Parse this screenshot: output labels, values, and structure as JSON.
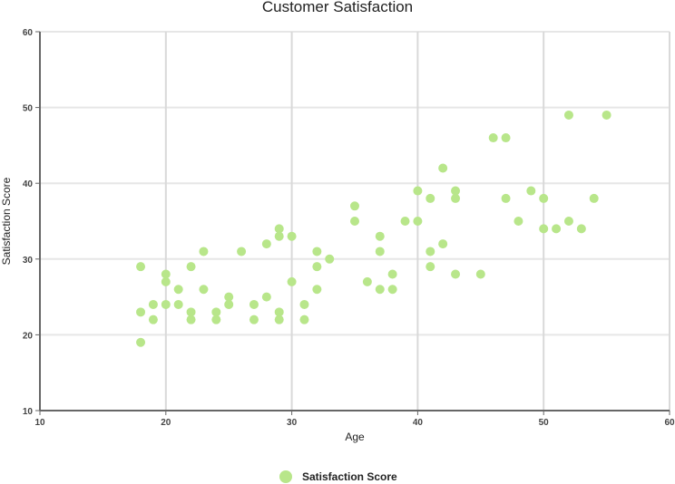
{
  "chart_data": {
    "type": "scatter",
    "title": "Customer Satisfaction",
    "xlabel": "Age",
    "ylabel": "Satisfaction Score",
    "xlim": [
      10,
      60
    ],
    "ylim": [
      10,
      60
    ],
    "xticks": [
      10,
      20,
      30,
      40,
      50,
      60
    ],
    "yticks": [
      10,
      20,
      30,
      40,
      50,
      60
    ],
    "grid": true,
    "legend_position": "bottom",
    "series": [
      {
        "name": "Satisfaction Score",
        "color": "#b8e68a",
        "points": [
          [
            18,
            29
          ],
          [
            18,
            23
          ],
          [
            18,
            19
          ],
          [
            19,
            24
          ],
          [
            19,
            22
          ],
          [
            20,
            28
          ],
          [
            20,
            27
          ],
          [
            20,
            24
          ],
          [
            21,
            26
          ],
          [
            21,
            24
          ],
          [
            22,
            29
          ],
          [
            22,
            23
          ],
          [
            22,
            22
          ],
          [
            23,
            31
          ],
          [
            23,
            26
          ],
          [
            24,
            23
          ],
          [
            24,
            22
          ],
          [
            25,
            25
          ],
          [
            25,
            24
          ],
          [
            26,
            31
          ],
          [
            27,
            24
          ],
          [
            27,
            22
          ],
          [
            28,
            32
          ],
          [
            28,
            25
          ],
          [
            29,
            34
          ],
          [
            29,
            33
          ],
          [
            29,
            23
          ],
          [
            29,
            22
          ],
          [
            30,
            33
          ],
          [
            30,
            27
          ],
          [
            31,
            24
          ],
          [
            31,
            22
          ],
          [
            32,
            31
          ],
          [
            32,
            29
          ],
          [
            32,
            26
          ],
          [
            33,
            30
          ],
          [
            35,
            37
          ],
          [
            35,
            35
          ],
          [
            36,
            27
          ],
          [
            37,
            33
          ],
          [
            37,
            31
          ],
          [
            37,
            26
          ],
          [
            38,
            28
          ],
          [
            38,
            26
          ],
          [
            39,
            35
          ],
          [
            40,
            39
          ],
          [
            40,
            35
          ],
          [
            41,
            38
          ],
          [
            41,
            31
          ],
          [
            41,
            29
          ],
          [
            42,
            42
          ],
          [
            42,
            32
          ],
          [
            43,
            39
          ],
          [
            43,
            38
          ],
          [
            43,
            28
          ],
          [
            45,
            28
          ],
          [
            46,
            46
          ],
          [
            47,
            46
          ],
          [
            47,
            38
          ],
          [
            48,
            35
          ],
          [
            49,
            39
          ],
          [
            50,
            38
          ],
          [
            50,
            34
          ],
          [
            51,
            34
          ],
          [
            52,
            49
          ],
          [
            52,
            35
          ],
          [
            53,
            34
          ],
          [
            54,
            38
          ],
          [
            55,
            49
          ]
        ]
      }
    ]
  },
  "legend": {
    "label": "Satisfaction Score"
  }
}
